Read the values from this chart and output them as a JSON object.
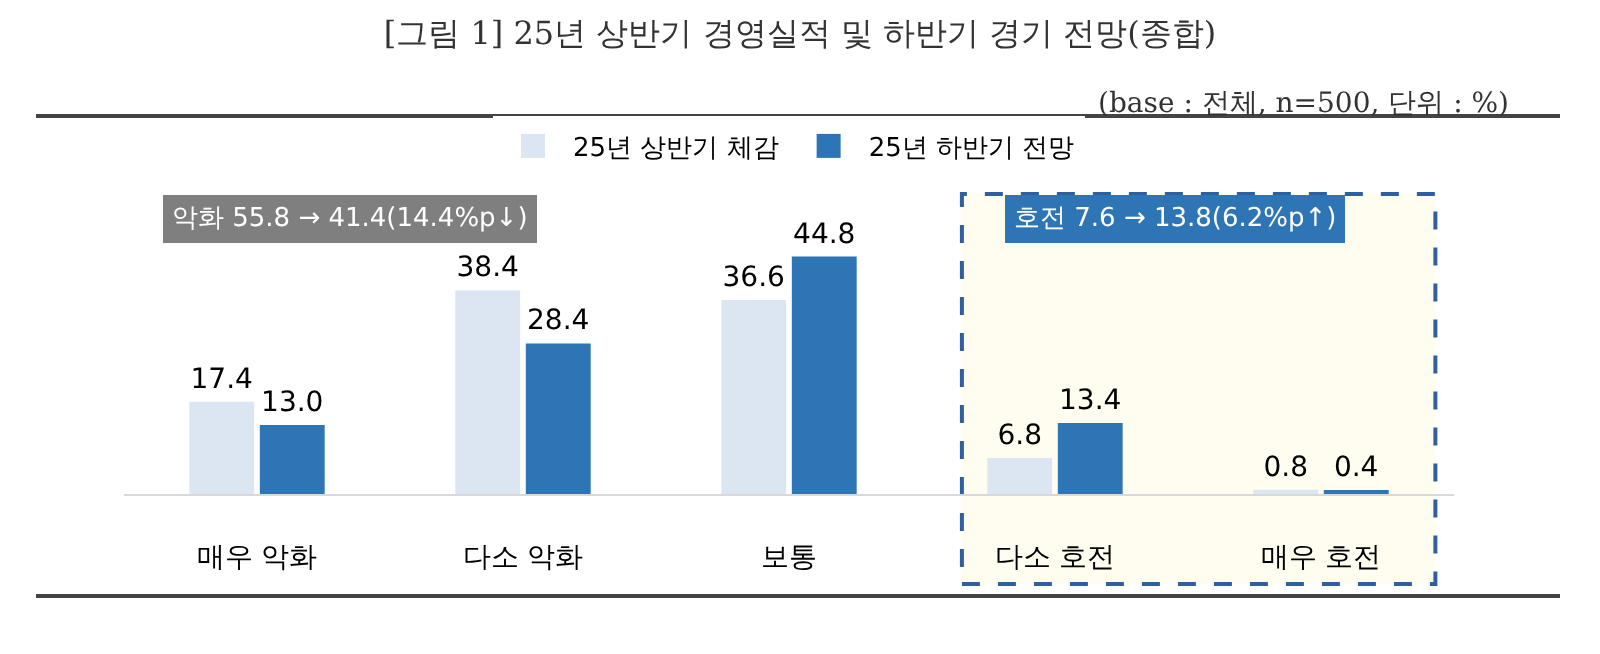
{
  "chart_data": {
    "type": "bar",
    "title": "[그림 1] 25년 상반기 경영실적 및 하반기 경기 전망(종합)",
    "subtitle": "(base : 전체, n=500, 단위 : %)",
    "categories": [
      "매우 악화",
      "다소 악화",
      "보통",
      "다소 호전",
      "매우 호전"
    ],
    "series": [
      {
        "name": "25년 상반기 체감",
        "color": "#dce6f2",
        "values": [
          17.4,
          38.4,
          36.6,
          6.8,
          0.8
        ],
        "value_labels": [
          "17.4",
          "38.4",
          "36.6",
          "6.8",
          "0.8"
        ]
      },
      {
        "name": "25년 하반기 전망",
        "color": "#2e75b6",
        "values": [
          13.0,
          28.4,
          44.8,
          13.4,
          0.4
        ],
        "value_labels": [
          "13.0",
          "28.4",
          "44.8",
          "13.4",
          "0.4"
        ]
      }
    ],
    "legend": "top",
    "grid": false,
    "tick_labels": "x",
    "annotations": [
      "악화 55.8 → 41.4(14.4%p↓)"
    ],
    "bands": [
      {
        "axis": "x",
        "from": "다소 호전",
        "to": "매우 호전",
        "label": "호전 7.6 → 13.8(6.2%p↑)",
        "color": "#fefdf0"
      }
    ]
  }
}
